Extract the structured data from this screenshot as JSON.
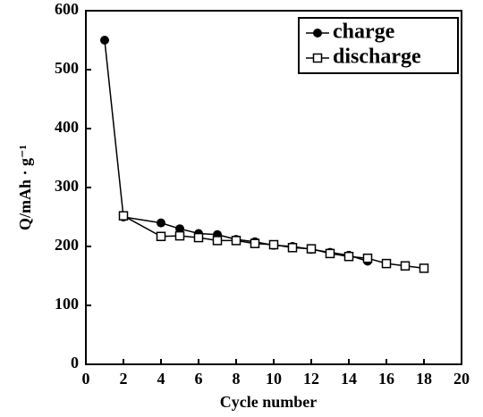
{
  "chart_data": {
    "type": "line",
    "xlabel": "Cycle number",
    "ylabel": "Q/mAh · g⁻¹",
    "xlim": [
      0,
      20
    ],
    "xticks": [
      0,
      2,
      4,
      6,
      8,
      10,
      12,
      14,
      16,
      18,
      20
    ],
    "ylim": [
      0,
      600
    ],
    "yticks": [
      0,
      100,
      200,
      300,
      400,
      500,
      600
    ],
    "legend": "upper right",
    "series": [
      {
        "name": "charge",
        "color": "#000000",
        "marker": "circle",
        "x": [
          1,
          2,
          4,
          5,
          6,
          7,
          8,
          9,
          10,
          11,
          12,
          13,
          14,
          15
        ],
        "values": [
          550,
          250,
          240,
          230,
          222,
          220,
          212,
          208,
          202,
          200,
          195,
          190,
          185,
          175
        ]
      },
      {
        "name": "discharge",
        "color": "#000000",
        "marker": "square",
        "x": [
          2,
          4,
          5,
          6,
          7,
          8,
          9,
          10,
          11,
          12,
          13,
          14,
          15,
          16,
          17,
          18
        ],
        "values": [
          252,
          217,
          218,
          215,
          210,
          210,
          205,
          203,
          198,
          196,
          188,
          183,
          180,
          171,
          167,
          163
        ]
      }
    ]
  }
}
